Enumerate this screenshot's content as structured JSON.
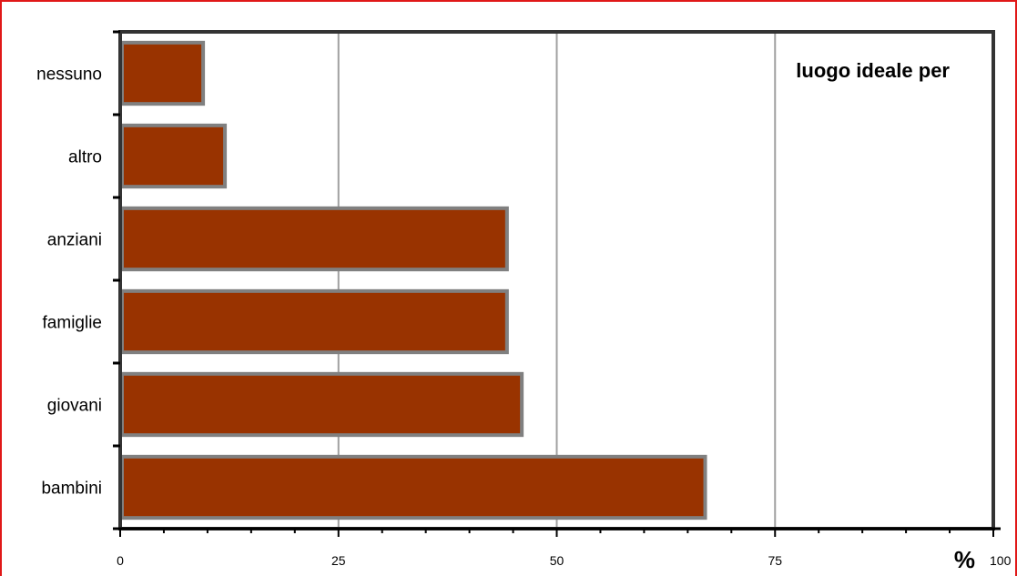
{
  "chart_data": {
    "type": "bar",
    "orientation": "horizontal",
    "title": "luogo ideale per",
    "unit_label": "%",
    "categories": [
      "nessuno",
      "altro",
      "anziani",
      "famiglie",
      "giovani",
      "bambini"
    ],
    "values": [
      9.5,
      12,
      44.3,
      44.3,
      46,
      67
    ],
    "x_ticks": [
      "0",
      "25",
      "50",
      "75",
      "100"
    ],
    "xlim": [
      0,
      100
    ],
    "grid": true,
    "colors": {
      "bar_fill": "#993300",
      "bar_edge": "#808080",
      "grid": "#a0a0a0",
      "frame": "#e01818"
    }
  }
}
